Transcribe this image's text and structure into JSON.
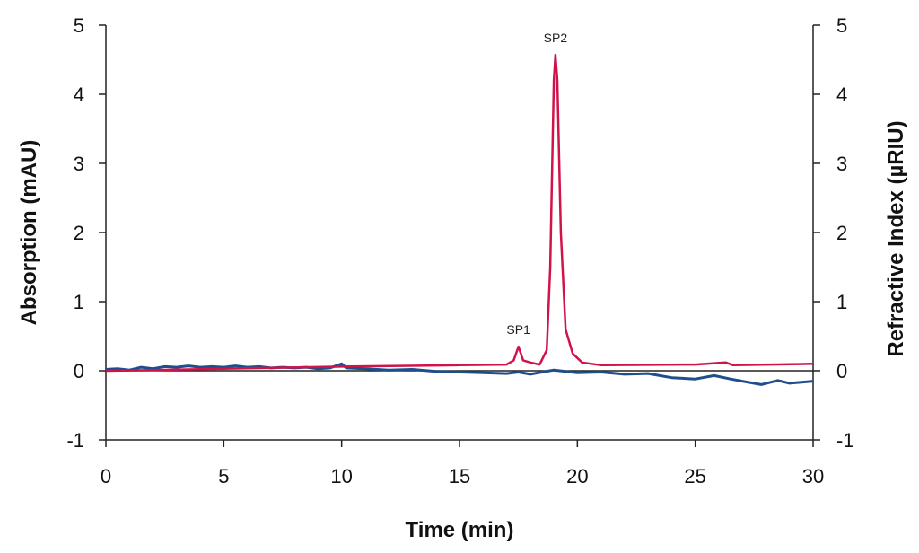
{
  "chart_data": {
    "type": "line",
    "xlabel": "Time (min)",
    "ylabel_left": "Absorption (mAU)",
    "ylabel_right": "Refractive Index (µRIU)",
    "xlim": [
      0,
      30
    ],
    "xticks": [
      0,
      5,
      10,
      15,
      20,
      25,
      30
    ],
    "ylim_left": [
      -1,
      5
    ],
    "ylim_right": [
      -1,
      5
    ],
    "yticks": [
      -1,
      0,
      1,
      2,
      3,
      4,
      5
    ],
    "grid": false,
    "annotations": [
      {
        "text": "SP1",
        "x": 17.5,
        "y": 0.35
      },
      {
        "text": "SP2",
        "x": 19.07,
        "y": 4.57
      }
    ],
    "series": [
      {
        "axis": "left",
        "color": "#1f4e8c",
        "x": [
          0,
          0.5,
          1,
          1.5,
          2,
          2.5,
          3,
          3.5,
          4,
          4.5,
          5,
          5.5,
          6,
          6.5,
          7,
          7.5,
          8,
          8.5,
          9,
          9.5,
          10,
          10.2,
          11,
          12,
          13,
          14,
          15,
          16,
          17,
          17.5,
          18,
          19,
          19.5,
          20,
          21,
          22,
          23,
          24,
          25,
          25.8,
          26.5,
          27,
          27.8,
          28.5,
          29,
          30
        ],
        "y": [
          0.02,
          0.03,
          0.01,
          0.05,
          0.03,
          0.06,
          0.05,
          0.07,
          0.05,
          0.06,
          0.05,
          0.07,
          0.05,
          0.06,
          0.04,
          0.05,
          0.04,
          0.05,
          0.03,
          0.04,
          0.1,
          0.04,
          0.03,
          0.01,
          0.02,
          -0.01,
          -0.02,
          -0.03,
          -0.04,
          -0.02,
          -0.05,
          0.01,
          -0.01,
          -0.03,
          -0.02,
          -0.05,
          -0.04,
          -0.1,
          -0.12,
          -0.07,
          -0.12,
          -0.15,
          -0.2,
          -0.14,
          -0.18,
          -0.15
        ]
      },
      {
        "axis": "right",
        "color": "#d0144a",
        "x": [
          0,
          2,
          5,
          10,
          15,
          17,
          17.3,
          17.5,
          17.7,
          18,
          18.4,
          18.7,
          18.85,
          19.0,
          19.07,
          19.15,
          19.3,
          19.5,
          19.8,
          20.2,
          21,
          25,
          26.3,
          26.6,
          30
        ],
        "y": [
          0,
          0.01,
          0.03,
          0.06,
          0.08,
          0.09,
          0.15,
          0.35,
          0.15,
          0.12,
          0.09,
          0.3,
          1.5,
          4.2,
          4.57,
          4.2,
          2.0,
          0.6,
          0.25,
          0.12,
          0.08,
          0.09,
          0.12,
          0.08,
          0.1
        ]
      }
    ]
  }
}
